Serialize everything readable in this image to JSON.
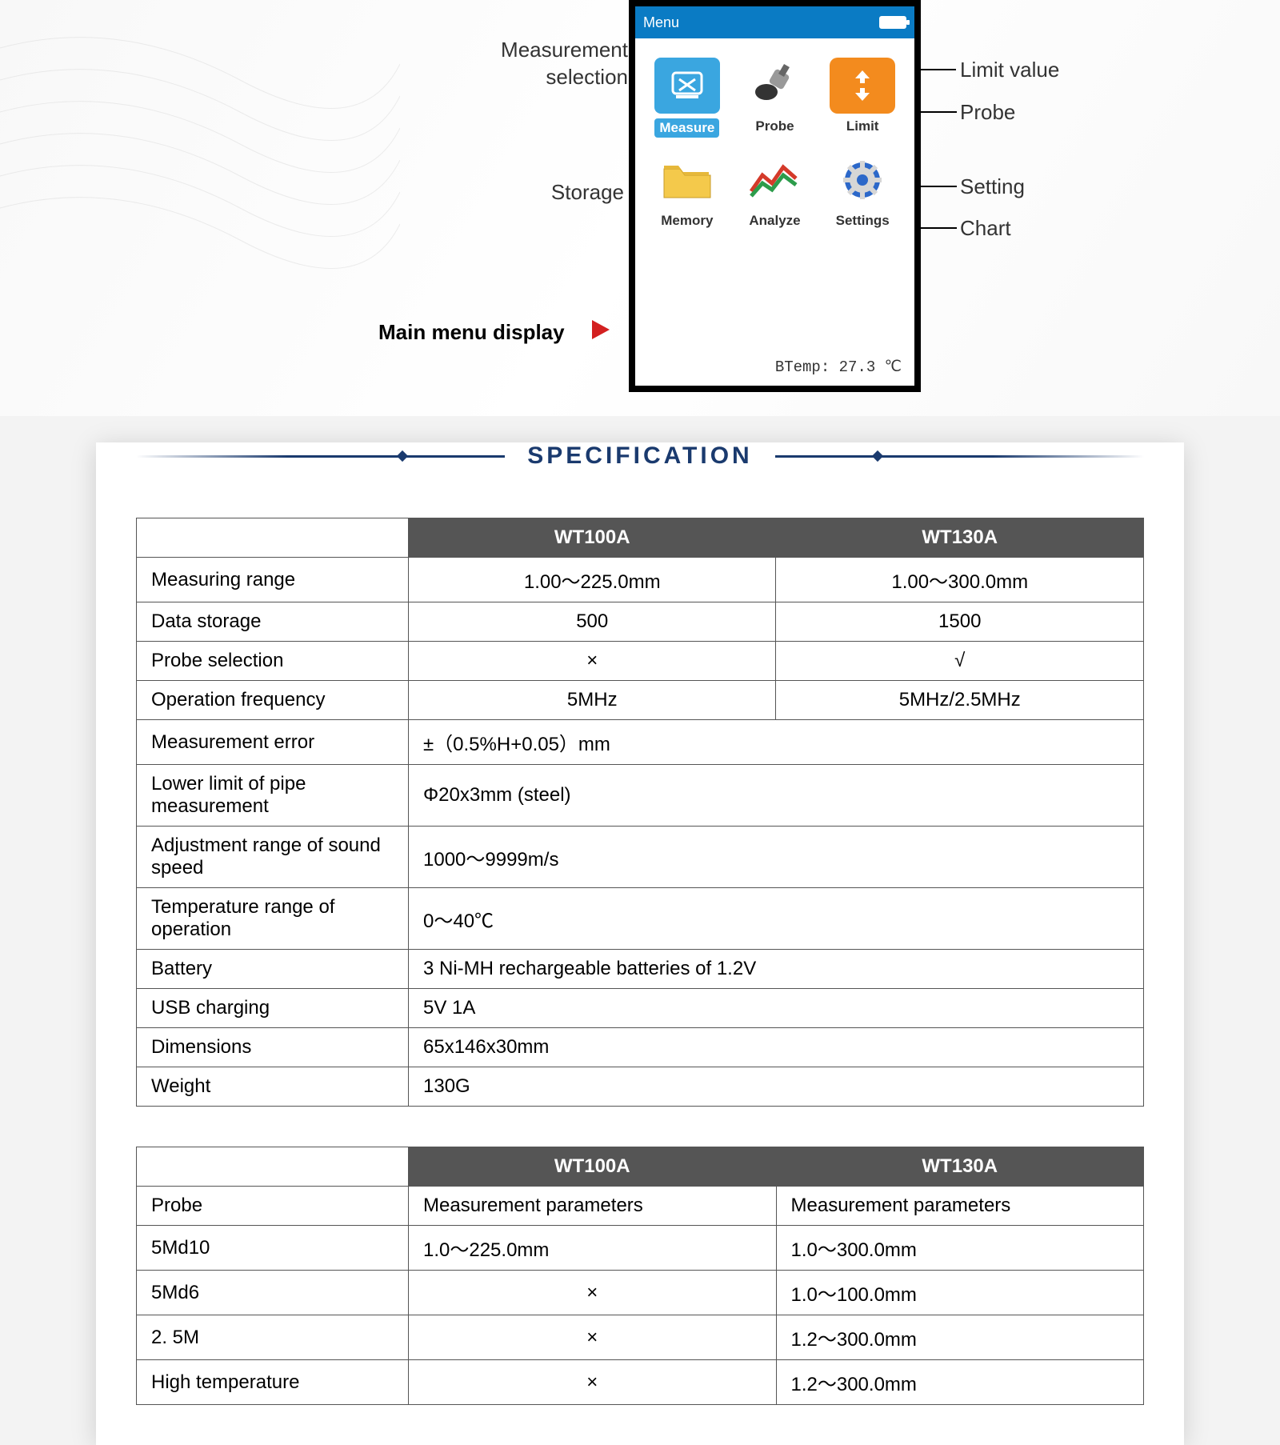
{
  "top": {
    "menu_title": "Menu",
    "icons": [
      {
        "label": "Measure",
        "bg": "#3aa6e0",
        "label_color": "#ffffff",
        "highlight": true
      },
      {
        "label": "Probe",
        "bg": "#ffffff"
      },
      {
        "label": "Limit",
        "bg": "#ffffff"
      },
      {
        "label": "Memory",
        "bg": "#ffffff"
      },
      {
        "label": "Analyze",
        "bg": "#ffffff"
      },
      {
        "label": "Settings",
        "bg": "#ffffff"
      }
    ],
    "btemp": "BTemp: 27.3 ℃",
    "callouts": {
      "measurement_selection": "Measurement\nselection",
      "storage": "Storage",
      "main_menu": "Main menu display",
      "limit_value": "Limit value",
      "probe": "Probe",
      "setting": "Setting",
      "chart": "Chart"
    }
  },
  "spec": {
    "title": "SPECIFICATION",
    "headers": [
      "",
      "WT100A",
      "WT130A"
    ],
    "rows": [
      {
        "label": "Measuring range",
        "a": "1.00～225.0mm",
        "b": "1.00～300.0mm",
        "center": true
      },
      {
        "label": "Data storage",
        "a": "500",
        "b": "1500",
        "center": true
      },
      {
        "label": "Probe selection",
        "a": "×",
        "b": "√",
        "center": true
      },
      {
        "label": "Operation frequency",
        "a": "5MHz",
        "b": "5MHz/2.5MHz",
        "center": true
      },
      {
        "label": "Measurement error",
        "span": "±（0.5%H+0.05）mm"
      },
      {
        "label": "Lower limit of pipe measurement",
        "span": "Φ20x3mm (steel)"
      },
      {
        "label": "Adjustment range of sound speed",
        "span": "1000～9999m/s"
      },
      {
        "label": "Temperature range of operation",
        "span": "0～40℃"
      },
      {
        "label": "Battery",
        "span": "3 Ni-MH rechargeable batteries of 1.2V"
      },
      {
        "label": "USB charging",
        "span": "5V  1A"
      },
      {
        "label": "Dimensions",
        "span": "65x146x30mm"
      },
      {
        "label": "Weight",
        "span": "130G"
      }
    ]
  },
  "spec2": {
    "headers": [
      "",
      "WT100A",
      "WT130A"
    ],
    "rows": [
      {
        "label": "Probe",
        "a": "Measurement parameters",
        "b": "Measurement parameters"
      },
      {
        "label": "5Md10",
        "a": "1.0～225.0mm",
        "b": "1.0～300.0mm"
      },
      {
        "label": "5Md6",
        "a": "×",
        "b": "1.0～100.0mm"
      },
      {
        "label": "2. 5M",
        "a": "×",
        "b": "1.2～300.0mm"
      },
      {
        "label": "High temperature",
        "a": "×",
        "b": "1.2～300.0mm"
      }
    ]
  },
  "colors": {
    "header_bar": "#0a7bc4",
    "measure_bg": "#3aa6e0",
    "limit_bg": "#f38b1e",
    "folder_bg": "#f4c94b",
    "gear_bg": "#2c68c9",
    "spec_title": "#1a3a6e",
    "table_header_bg": "#555555",
    "arrow_red": "#d32020"
  }
}
